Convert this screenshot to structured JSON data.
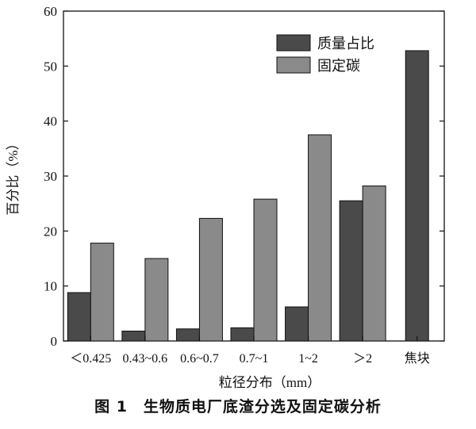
{
  "chart_data": {
    "type": "bar",
    "categories": [
      "＜0.425",
      "0.43~0.6",
      "0.6~0.7",
      "0.7~1",
      "1~2",
      "＞2",
      "焦块"
    ],
    "series": [
      {
        "name": "质量占比",
        "values": [
          8.8,
          1.8,
          2.2,
          2.4,
          6.2,
          25.5,
          52.8
        ],
        "color": "#4a4a4a"
      },
      {
        "name": "固定碳",
        "values": [
          17.8,
          15.0,
          22.3,
          25.8,
          37.5,
          28.2,
          null
        ],
        "color": "#8a8a8a"
      }
    ],
    "xlabel": "粒径分布（mm）",
    "ylabel": "百分比（%）",
    "ylim": [
      0,
      60
    ],
    "yticks": [
      0,
      10,
      20,
      30,
      40,
      50,
      60
    ],
    "grid": false,
    "legend": "top-right"
  },
  "caption": "图 1　生物质电厂底渣分选及固定碳分析"
}
